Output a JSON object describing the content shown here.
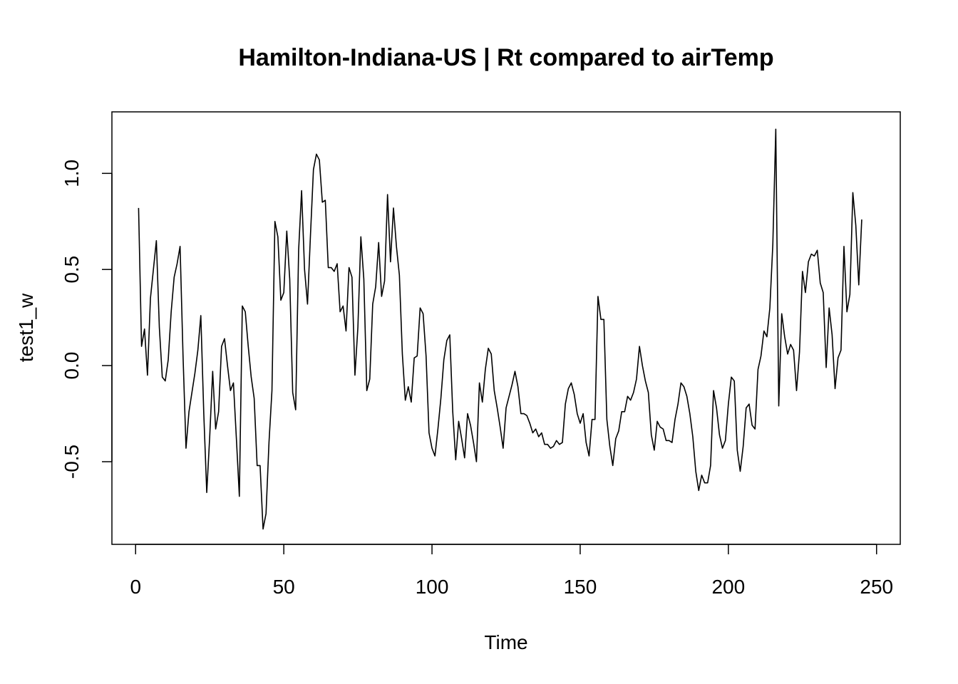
{
  "chart_data": {
    "type": "line",
    "title": "Hamilton-Indiana-US | Rt compared to airTemp",
    "xlabel": "Time",
    "ylabel": "test1_w",
    "xlim": [
      -8,
      258
    ],
    "ylim": [
      -0.93,
      1.32
    ],
    "grid": false,
    "x_ticks": [
      0,
      50,
      100,
      150,
      200,
      250
    ],
    "x_tick_labels": [
      "0",
      "50",
      "100",
      "150",
      "200",
      "250"
    ],
    "y_ticks": [
      -0.5,
      0.0,
      0.5,
      1.0
    ],
    "y_tick_labels": [
      "-0.5",
      "0.0",
      "0.5",
      "1.0"
    ],
    "series": [
      {
        "x_start": 1,
        "values": [
          0.82,
          0.1,
          0.19,
          -0.05,
          0.35,
          0.5,
          0.65,
          0.2,
          -0.06,
          -0.08,
          0.03,
          0.28,
          0.46,
          0.53,
          0.62,
          0.05,
          -0.43,
          -0.24,
          -0.14,
          -0.04,
          0.08,
          0.26,
          -0.25,
          -0.66,
          -0.37,
          -0.03,
          -0.33,
          -0.24,
          0.1,
          0.14,
          0.0,
          -0.13,
          -0.09,
          -0.38,
          -0.68,
          0.31,
          0.28,
          0.1,
          -0.06,
          -0.17,
          -0.52,
          -0.52,
          -0.85,
          -0.77,
          -0.4,
          -0.13,
          0.75,
          0.67,
          0.34,
          0.38,
          0.7,
          0.45,
          -0.14,
          -0.23,
          0.6,
          0.91,
          0.5,
          0.32,
          0.68,
          1.02,
          1.1,
          1.07,
          0.85,
          0.86,
          0.51,
          0.51,
          0.49,
          0.53,
          0.28,
          0.31,
          0.18,
          0.51,
          0.46,
          -0.05,
          0.2,
          0.67,
          0.45,
          -0.13,
          -0.07,
          0.32,
          0.41,
          0.64,
          0.36,
          0.44,
          0.89,
          0.54,
          0.82,
          0.62,
          0.47,
          0.06,
          -0.18,
          -0.11,
          -0.19,
          0.04,
          0.05,
          0.3,
          0.27,
          0.05,
          -0.35,
          -0.43,
          -0.47,
          -0.33,
          -0.17,
          0.03,
          0.13,
          0.16,
          -0.24,
          -0.49,
          -0.29,
          -0.38,
          -0.48,
          -0.25,
          -0.31,
          -0.4,
          -0.5,
          -0.09,
          -0.19,
          -0.02,
          0.09,
          0.06,
          -0.13,
          -0.22,
          -0.32,
          -0.43,
          -0.22,
          -0.16,
          -0.1,
          -0.03,
          -0.11,
          -0.25,
          -0.25,
          -0.26,
          -0.3,
          -0.35,
          -0.33,
          -0.37,
          -0.35,
          -0.41,
          -0.41,
          -0.43,
          -0.42,
          -0.39,
          -0.41,
          -0.4,
          -0.2,
          -0.12,
          -0.09,
          -0.15,
          -0.25,
          -0.3,
          -0.25,
          -0.4,
          -0.47,
          -0.28,
          -0.28,
          0.36,
          0.24,
          0.24,
          -0.28,
          -0.42,
          -0.52,
          -0.38,
          -0.34,
          -0.24,
          -0.24,
          -0.16,
          -0.18,
          -0.14,
          -0.07,
          0.1,
          0.0,
          -0.08,
          -0.14,
          -0.36,
          -0.44,
          -0.29,
          -0.32,
          -0.33,
          -0.39,
          -0.39,
          -0.4,
          -0.28,
          -0.2,
          -0.09,
          -0.11,
          -0.16,
          -0.25,
          -0.37,
          -0.55,
          -0.65,
          -0.57,
          -0.61,
          -0.61,
          -0.52,
          -0.13,
          -0.22,
          -0.36,
          -0.43,
          -0.39,
          -0.2,
          -0.06,
          -0.08,
          -0.44,
          -0.55,
          -0.42,
          -0.22,
          -0.2,
          -0.31,
          -0.33,
          -0.02,
          0.05,
          0.18,
          0.15,
          0.3,
          0.63,
          1.23,
          -0.21,
          0.27,
          0.15,
          0.06,
          0.11,
          0.08,
          -0.13,
          0.07,
          0.49,
          0.38,
          0.54,
          0.58,
          0.57,
          0.6,
          0.43,
          0.38,
          -0.01,
          0.3,
          0.16,
          -0.12,
          0.04,
          0.08,
          0.62,
          0.28,
          0.37,
          0.9,
          0.73,
          0.42,
          0.76
        ]
      }
    ]
  }
}
